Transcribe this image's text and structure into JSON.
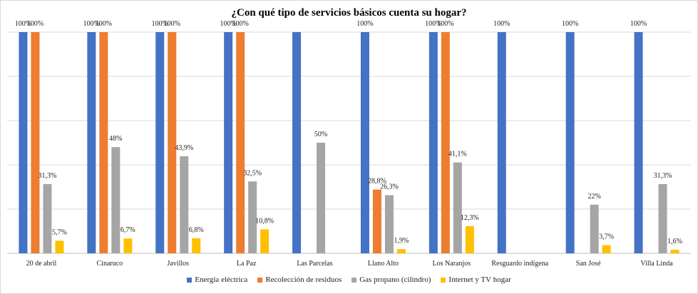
{
  "chart_data": {
    "type": "bar",
    "title": "¿Con qué tipo de servicios básicos cuenta su hogar?",
    "categories": [
      "20 de abril",
      "Cinaruco",
      "Javillos",
      "La Paz",
      "Las Parcelas",
      "Llano Alto",
      "Los Naranjos",
      "Resguardo indígena",
      "San José",
      "Villa Linda"
    ],
    "ylim": [
      0,
      100
    ],
    "grid": true,
    "legend_position": "bottom",
    "series": [
      {
        "name": "Energía eléctrica",
        "color": "#4472C4",
        "values": [
          100,
          100,
          100,
          100,
          100,
          100,
          100,
          100,
          100,
          100
        ],
        "labels": [
          "100%",
          "100%",
          "100%",
          "100%",
          "",
          "100%",
          "100%",
          "100%",
          "100%",
          "100%"
        ]
      },
      {
        "name": "Recolección de residuos",
        "color": "#ED7D31",
        "values": [
          100,
          100,
          100,
          100,
          null,
          28.8,
          100,
          null,
          null,
          null
        ],
        "labels": [
          "100%",
          "100%",
          "100%",
          "100%",
          "",
          "28,8%",
          "100%",
          "",
          "",
          ""
        ]
      },
      {
        "name": "Gas propano (cilindro)",
        "color": "#A5A5A5",
        "values": [
          31.3,
          48,
          43.9,
          32.5,
          50,
          26.3,
          41.1,
          null,
          22,
          31.3
        ],
        "labels": [
          "31,3%",
          "48%",
          "43,9%",
          "32,5%",
          "50%",
          "26,3%",
          "41,1%",
          "",
          "22%",
          "31,3%"
        ]
      },
      {
        "name": "Internet y TV hogar",
        "color": "#FFC000",
        "values": [
          5.7,
          6.7,
          6.8,
          10.8,
          null,
          1.9,
          12.3,
          null,
          3.7,
          1.6
        ],
        "labels": [
          "5,7%",
          "6,7%",
          "6,8%",
          "10,8%",
          "",
          "1,9%",
          "12,3%",
          "",
          "3,7%",
          "1,6%"
        ]
      }
    ]
  }
}
